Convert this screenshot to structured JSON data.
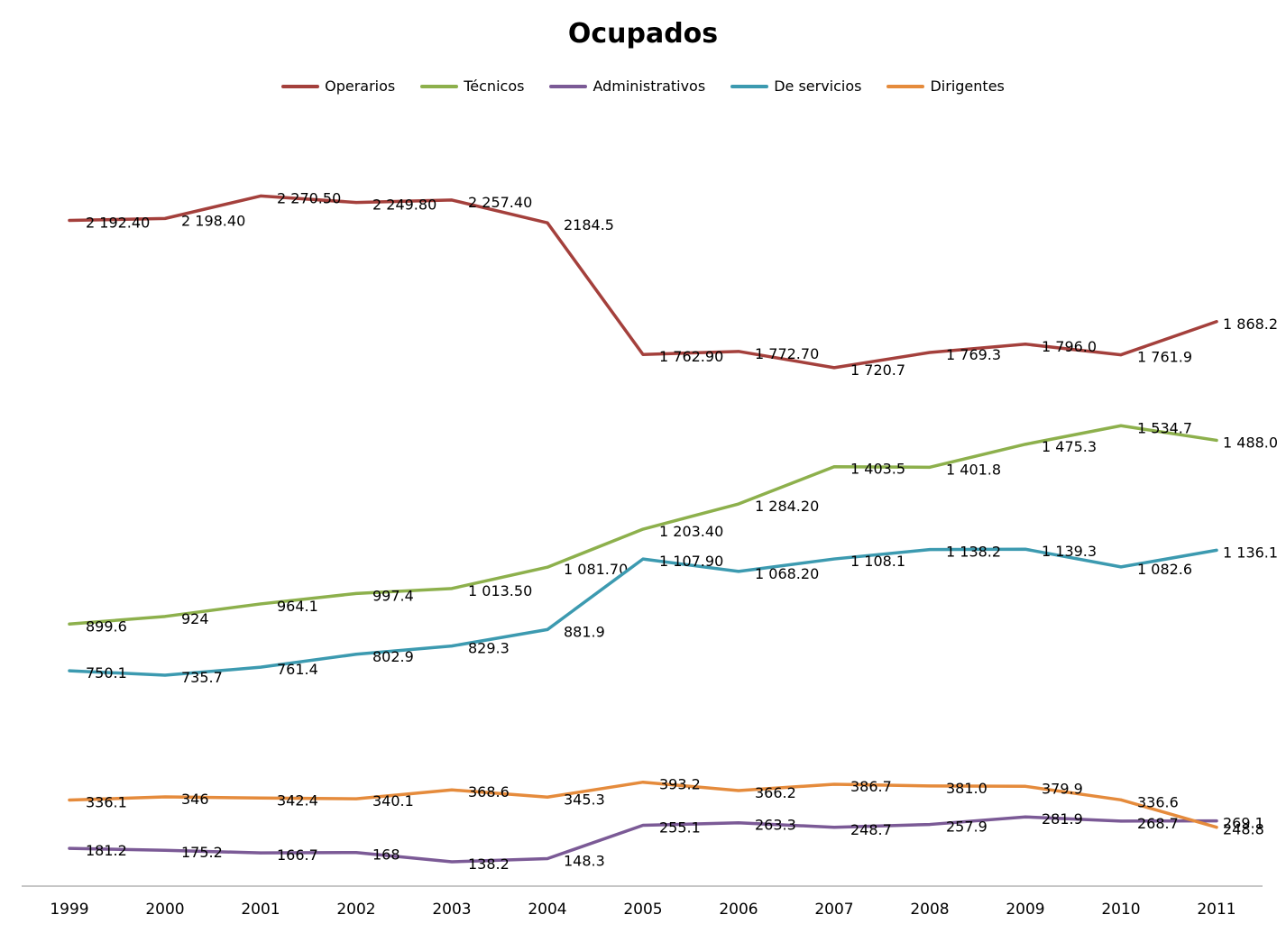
{
  "chart_data": {
    "type": "line",
    "title": "Ocupados",
    "xlabel": "",
    "ylabel": "",
    "categories": [
      "1999",
      "2000",
      "2001",
      "2002",
      "2003",
      "2004",
      "2005",
      "2006",
      "2007",
      "2008",
      "2009",
      "2010",
      "2011"
    ],
    "ylim": [
      0,
      2600
    ],
    "grid": false,
    "legend_position": "top",
    "series": [
      {
        "name": "Operarios",
        "color": "#A4403C",
        "values": [
          2192.4,
          2198.4,
          2270.5,
          2249.8,
          2257.4,
          2184.5,
          1762.9,
          1772.7,
          1720.7,
          1769.3,
          1796.0,
          1761.9,
          1868.2
        ],
        "labels": [
          "2 192.40",
          "2 198.40",
          "2 270.50",
          "2 249.80",
          "2 257.40",
          "2184.5",
          "1 762.90",
          "1 772.70",
          "1 720.7",
          "1 769.3",
          "1 796.0",
          "1 761.9",
          "1 868.2"
        ]
      },
      {
        "name": "Técnicos",
        "color": "#8DB04C",
        "values": [
          899.6,
          924,
          964.1,
          997.4,
          1013.5,
          1081.7,
          1203.4,
          1284.2,
          1403.5,
          1401.8,
          1475.3,
          1534.7,
          1488.0
        ],
        "labels": [
          "899.6",
          "924",
          "964.1",
          "997.4",
          "1 013.50",
          "1 081.70",
          "1 203.40",
          "1 284.20",
          "1 403.5",
          "1 401.8",
          "1 475.3",
          "1 534.7",
          "1 488.0"
        ]
      },
      {
        "name": "Administrativos",
        "color": "#7B5A96",
        "values": [
          181.2,
          175.2,
          166.7,
          168,
          138.2,
          148.3,
          255.1,
          263.3,
          248.7,
          257.9,
          281.9,
          268.7,
          269.1
        ],
        "labels": [
          "181.2",
          "175.2",
          "166.7",
          "168",
          "138.2",
          "148.3",
          "255.1",
          "263.3",
          "248.7",
          "257.9",
          "281.9",
          "268.7",
          "269.1"
        ]
      },
      {
        "name": "De servicios",
        "color": "#3C9AB0",
        "values": [
          750.1,
          735.7,
          761.4,
          802.9,
          829.3,
          881.9,
          1107.9,
          1068.2,
          1108.1,
          1138.2,
          1139.3,
          1082.6,
          1136.1
        ],
        "labels": [
          "750.1",
          "735.7",
          "761.4",
          "802.9",
          "829.3",
          "881.9",
          "1 107.90",
          "1 068.20",
          "1 108.1",
          "1 138.2",
          "1 139.3",
          "1 082.6",
          "1 136.1"
        ]
      },
      {
        "name": "Dirigentes",
        "color": "#E58B3C",
        "values": [
          336.1,
          346,
          342.4,
          340.1,
          368.6,
          345.3,
          393.2,
          366.2,
          386.7,
          381.0,
          379.9,
          336.6,
          248.8
        ],
        "labels": [
          "336.1",
          "346",
          "342.4",
          "340.1",
          "368.6",
          "345.3",
          "393.2",
          "366.2",
          "386.7",
          "381.0",
          "379.9",
          "336.6",
          "248.8"
        ]
      }
    ]
  }
}
